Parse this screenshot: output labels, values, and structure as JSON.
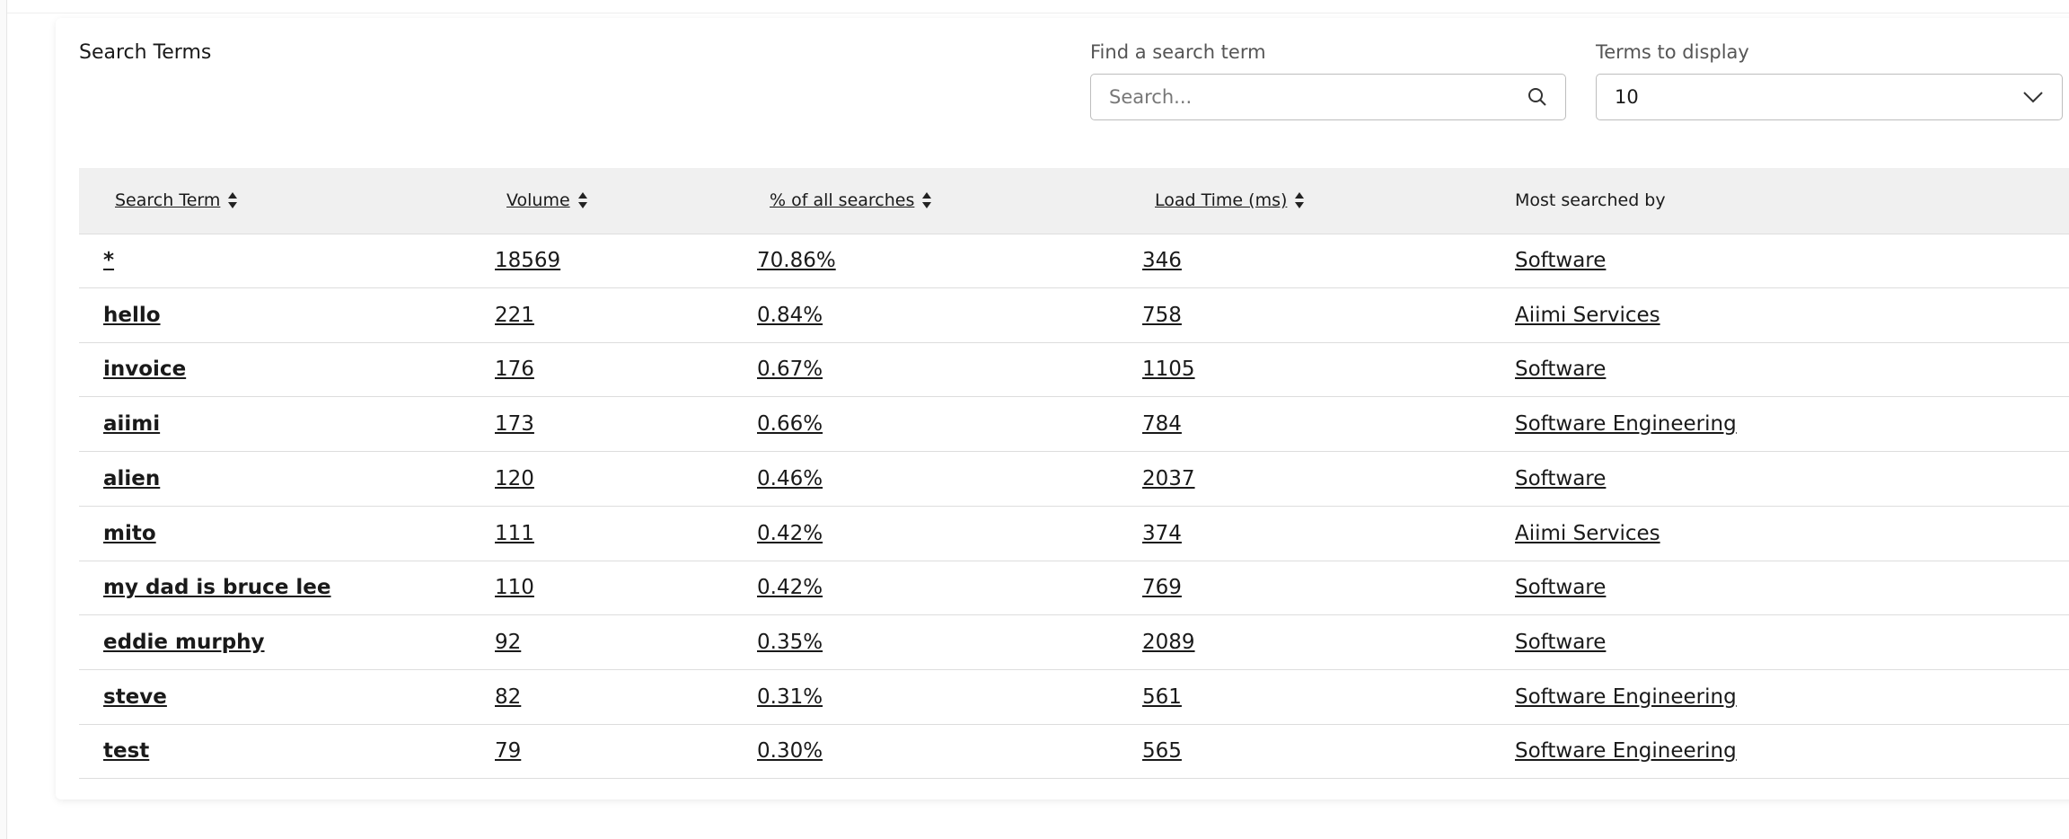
{
  "title": "Search Terms",
  "search": {
    "label": "Find a search term",
    "placeholder": "Search..."
  },
  "display": {
    "label": "Terms to display",
    "value": "10"
  },
  "table": {
    "headers": [
      "Search Term",
      "Volume",
      "% of all searches",
      "Load Time (ms)",
      "Most searched by"
    ],
    "rows": [
      [
        "*",
        "18569",
        "70.86%",
        "346",
        "Software"
      ],
      [
        "hello",
        "221",
        "0.84%",
        "758",
        "Aiimi Services"
      ],
      [
        "invoice",
        "176",
        "0.67%",
        "1105",
        "Software"
      ],
      [
        "aiimi",
        "173",
        "0.66%",
        "784",
        "Software Engineering"
      ],
      [
        "alien",
        "120",
        "0.46%",
        "2037",
        "Software"
      ],
      [
        "mito",
        "111",
        "0.42%",
        "374",
        "Aiimi Services"
      ],
      [
        "my dad is bruce lee",
        "110",
        "0.42%",
        "769",
        "Software"
      ],
      [
        "eddie murphy",
        "92",
        "0.35%",
        "2089",
        "Software"
      ],
      [
        "steve",
        "82",
        "0.31%",
        "561",
        "Software Engineering"
      ],
      [
        "test",
        "79",
        "0.30%",
        "565",
        "Software Engineering"
      ]
    ]
  }
}
